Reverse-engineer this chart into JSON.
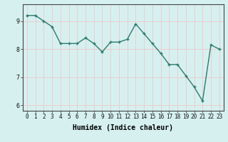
{
  "x": [
    0,
    1,
    2,
    3,
    4,
    5,
    6,
    7,
    8,
    9,
    10,
    11,
    12,
    13,
    14,
    15,
    16,
    17,
    18,
    19,
    20,
    21,
    22,
    23
  ],
  "y": [
    9.2,
    9.2,
    9.0,
    8.8,
    8.2,
    8.2,
    8.2,
    8.4,
    8.2,
    7.9,
    8.25,
    8.25,
    8.35,
    8.9,
    8.55,
    8.2,
    7.85,
    7.45,
    7.45,
    7.05,
    6.65,
    6.15,
    8.15,
    8.0
  ],
  "line_color": "#2d7a6e",
  "marker": "+",
  "marker_size": 3,
  "background_color": "#d6f0f0",
  "grid_color": "#f0c8c8",
  "xlabel": "Humidex (Indice chaleur)",
  "ylabel": "",
  "ylim": [
    5.8,
    9.6
  ],
  "xlim": [
    -0.5,
    23.5
  ],
  "yticks": [
    6,
    7,
    8,
    9
  ],
  "xticks": [
    0,
    1,
    2,
    3,
    4,
    5,
    6,
    7,
    8,
    9,
    10,
    11,
    12,
    13,
    14,
    15,
    16,
    17,
    18,
    19,
    20,
    21,
    22,
    23
  ],
  "tick_labelsize": 5.5,
  "xlabel_fontsize": 7,
  "ytick_labelsize": 6,
  "line_width": 1.0
}
